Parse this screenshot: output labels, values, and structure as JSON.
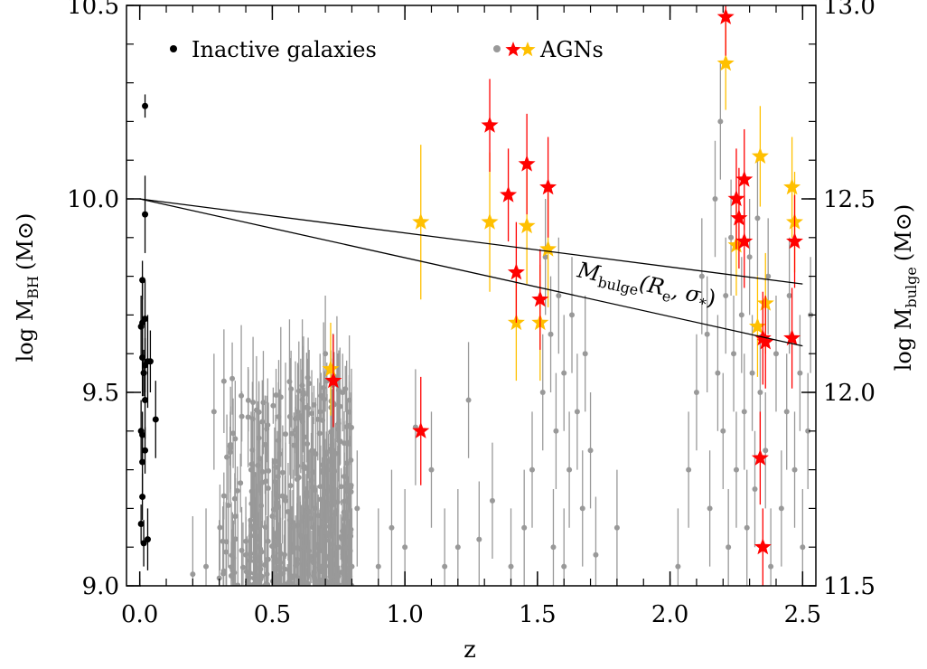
{
  "chart_data": {
    "type": "scatter",
    "xlabel": "z",
    "ylabel_left": "log M",
    "ylabel_left_sub": "BH",
    "ylabel_left_unit": "(M⊙)",
    "ylabel_right": "log M",
    "ylabel_right_sub": "bulge",
    "ylabel_right_unit": "(M⊙)",
    "xlim": [
      -0.05,
      2.55
    ],
    "ylim": [
      9.0,
      10.5
    ],
    "ylim_right": [
      11.5,
      13.0
    ],
    "x_ticks": [
      0.0,
      0.5,
      1.0,
      1.5,
      2.0,
      2.5
    ],
    "x_tick_labels": [
      "0.0",
      "0.5",
      "1.0",
      "1.5",
      "2.0",
      "2.5"
    ],
    "y_ticks": [
      9.0,
      9.5,
      10.0,
      10.5
    ],
    "y_tick_labels": [
      "9.0",
      "9.5",
      "10.0",
      "10.5"
    ],
    "y_right_ticks": [
      11.5,
      12.0,
      12.5,
      13.0
    ],
    "y_right_tick_labels": [
      "11.5",
      "12.0",
      "12.5",
      "13.0"
    ],
    "legend": {
      "placement": "top",
      "inactive_label": "Inactive galaxies",
      "agn_label": "AGNs"
    },
    "annotation": {
      "main": "M",
      "sub": "bulge",
      "args_open": "(R",
      "args_sub1": "e",
      "args_mid": ", σ",
      "args_sub2": "*",
      "args_close": ")"
    },
    "colors": {
      "inactive": "#000000",
      "agn_gray": "#999999",
      "agn_red": "#ff0000",
      "agn_yellow": "#ffc000",
      "line": "#000000"
    },
    "series": [
      {
        "name": "Inactive galaxies",
        "marker": "dot",
        "color": "#000000",
        "points": [
          {
            "x": 0.02,
            "y": 10.24,
            "err": 0.03
          },
          {
            "x": 0.02,
            "y": 9.96,
            "err": 0.1
          },
          {
            "x": 0.01,
            "y": 9.79,
            "err": 0.05
          },
          {
            "x": 0.01,
            "y": 9.68,
            "err": 0.12
          },
          {
            "x": 0.02,
            "y": 9.69,
            "err": 0.1
          },
          {
            "x": 0.005,
            "y": 9.67,
            "err": 0.08
          },
          {
            "x": 0.01,
            "y": 9.59,
            "err": 0.1
          },
          {
            "x": 0.02,
            "y": 9.57,
            "err": 0.07
          },
          {
            "x": 0.03,
            "y": 9.58,
            "err": 0.12
          },
          {
            "x": 0.04,
            "y": 9.58,
            "err": 0.08
          },
          {
            "x": 0.015,
            "y": 9.55,
            "err": 0.06
          },
          {
            "x": 0.02,
            "y": 9.48,
            "err": 0.1
          },
          {
            "x": 0.06,
            "y": 9.43,
            "err": 0.1
          },
          {
            "x": 0.005,
            "y": 9.4,
            "err": 0.08
          },
          {
            "x": 0.01,
            "y": 9.39,
            "err": 0.06
          },
          {
            "x": 0.02,
            "y": 9.35,
            "err": 0.06
          },
          {
            "x": 0.01,
            "y": 9.32,
            "err": 0.08
          },
          {
            "x": 0.01,
            "y": 9.23,
            "err": 0.06
          },
          {
            "x": 0.005,
            "y": 9.16,
            "err": 0.05
          },
          {
            "x": 0.03,
            "y": 9.12,
            "err": 0.08
          },
          {
            "x": 0.015,
            "y": 9.11,
            "err": 0.06
          }
        ]
      },
      {
        "name": "AGNs",
        "marker": "star",
        "color": "#ff0000",
        "points": [
          {
            "x": 0.73,
            "y": 9.53,
            "err": 0.12
          },
          {
            "x": 1.06,
            "y": 9.4,
            "err": 0.14
          },
          {
            "x": 1.32,
            "y": 10.19,
            "err": 0.12
          },
          {
            "x": 1.39,
            "y": 10.01,
            "err": 0.12
          },
          {
            "x": 1.42,
            "y": 9.81,
            "err": 0.13
          },
          {
            "x": 1.46,
            "y": 10.09,
            "err": 0.13
          },
          {
            "x": 1.51,
            "y": 9.74,
            "err": 0.13
          },
          {
            "x": 1.54,
            "y": 10.03,
            "err": 0.13
          },
          {
            "x": 2.21,
            "y": 10.47,
            "err": 0.1
          },
          {
            "x": 2.25,
            "y": 10.0,
            "err": 0.13
          },
          {
            "x": 2.26,
            "y": 9.95,
            "err": 0.13
          },
          {
            "x": 2.28,
            "y": 10.05,
            "err": 0.13
          },
          {
            "x": 2.28,
            "y": 9.89,
            "err": 0.12
          },
          {
            "x": 2.34,
            "y": 9.33,
            "err": 0.12
          },
          {
            "x": 2.35,
            "y": 9.64,
            "err": 0.12
          },
          {
            "x": 2.36,
            "y": 9.63,
            "err": 0.12
          },
          {
            "x": 2.35,
            "y": 9.1,
            "err": 0.1
          },
          {
            "x": 2.46,
            "y": 9.64,
            "err": 0.13
          },
          {
            "x": 2.47,
            "y": 9.89,
            "err": 0.12
          }
        ]
      },
      {
        "name": "AGNs",
        "marker": "star",
        "color": "#ffc000",
        "points": [
          {
            "x": 0.72,
            "y": 9.56,
            "err": 0.12
          },
          {
            "x": 1.06,
            "y": 9.94,
            "err": 0.2
          },
          {
            "x": 1.32,
            "y": 9.94,
            "err": 0.18
          },
          {
            "x": 1.42,
            "y": 9.68,
            "err": 0.15
          },
          {
            "x": 1.46,
            "y": 9.93,
            "err": 0.15
          },
          {
            "x": 1.51,
            "y": 9.68,
            "err": 0.15
          },
          {
            "x": 1.54,
            "y": 9.87,
            "err": 0.15
          },
          {
            "x": 2.21,
            "y": 10.35,
            "err": 0.12
          },
          {
            "x": 2.25,
            "y": 9.88,
            "err": 0.13
          },
          {
            "x": 2.34,
            "y": 10.11,
            "err": 0.13
          },
          {
            "x": 2.33,
            "y": 9.67,
            "err": 0.13
          },
          {
            "x": 2.36,
            "y": 9.73,
            "err": 0.13
          },
          {
            "x": 2.46,
            "y": 10.03,
            "err": 0.13
          },
          {
            "x": 2.47,
            "y": 9.94,
            "err": 0.13
          }
        ]
      },
      {
        "name": "AGNs",
        "marker": "dot",
        "color": "#999999",
        "points": [
          {
            "x": 0.7,
            "y": 9.6,
            "err": 0.15
          },
          {
            "x": 0.68,
            "y": 9.45,
            "err": 0.15
          },
          {
            "x": 0.75,
            "y": 9.42,
            "err": 0.15
          },
          {
            "x": 0.65,
            "y": 9.35,
            "err": 0.15
          },
          {
            "x": 0.72,
            "y": 9.3,
            "err": 0.15
          },
          {
            "x": 0.6,
            "y": 9.28,
            "err": 0.15
          },
          {
            "x": 0.78,
            "y": 9.25,
            "err": 0.15
          },
          {
            "x": 0.55,
            "y": 9.22,
            "err": 0.15
          },
          {
            "x": 0.66,
            "y": 9.2,
            "err": 0.15
          },
          {
            "x": 0.5,
            "y": 9.18,
            "err": 0.15
          },
          {
            "x": 0.58,
            "y": 9.15,
            "err": 0.15
          },
          {
            "x": 0.7,
            "y": 9.14,
            "err": 0.15
          },
          {
            "x": 0.45,
            "y": 9.12,
            "err": 0.15
          },
          {
            "x": 0.62,
            "y": 9.1,
            "err": 0.15
          },
          {
            "x": 0.75,
            "y": 9.1,
            "err": 0.15
          },
          {
            "x": 0.4,
            "y": 9.08,
            "err": 0.15
          },
          {
            "x": 0.53,
            "y": 9.06,
            "err": 0.15
          },
          {
            "x": 0.68,
            "y": 9.05,
            "err": 0.15
          },
          {
            "x": 0.35,
            "y": 9.04,
            "err": 0.15
          },
          {
            "x": 0.48,
            "y": 9.03,
            "err": 0.15
          },
          {
            "x": 0.6,
            "y": 9.02,
            "err": 0.15
          },
          {
            "x": 0.3,
            "y": 9.02,
            "err": 0.15
          },
          {
            "x": 0.25,
            "y": 9.05,
            "err": 0.15
          },
          {
            "x": 0.2,
            "y": 9.03,
            "err": 0.15
          },
          {
            "x": 0.28,
            "y": 9.45,
            "err": 0.15
          },
          {
            "x": 0.36,
            "y": 9.38,
            "err": 0.15
          },
          {
            "x": 0.42,
            "y": 9.3,
            "err": 0.15
          },
          {
            "x": 0.8,
            "y": 9.05,
            "err": 0.15
          },
          {
            "x": 0.82,
            "y": 9.2,
            "err": 0.15
          },
          {
            "x": 0.9,
            "y": 9.05,
            "err": 0.15
          },
          {
            "x": 0.95,
            "y": 9.15,
            "err": 0.15
          },
          {
            "x": 1.0,
            "y": 9.1,
            "err": 0.15
          },
          {
            "x": 1.04,
            "y": 9.41,
            "err": 0.15
          },
          {
            "x": 1.1,
            "y": 9.3,
            "err": 0.15
          },
          {
            "x": 1.15,
            "y": 9.05,
            "err": 0.15
          },
          {
            "x": 1.2,
            "y": 9.1,
            "err": 0.15
          },
          {
            "x": 1.24,
            "y": 9.48,
            "err": 0.15
          },
          {
            "x": 1.28,
            "y": 9.12,
            "err": 0.15
          },
          {
            "x": 1.33,
            "y": 9.22,
            "err": 0.15
          },
          {
            "x": 1.4,
            "y": 9.05,
            "err": 0.15
          },
          {
            "x": 1.45,
            "y": 9.15,
            "err": 0.15
          },
          {
            "x": 1.48,
            "y": 9.3,
            "err": 0.15
          },
          {
            "x": 1.52,
            "y": 9.5,
            "err": 0.15
          },
          {
            "x": 1.55,
            "y": 9.65,
            "err": 0.15
          },
          {
            "x": 1.57,
            "y": 9.4,
            "err": 0.15
          },
          {
            "x": 1.58,
            "y": 9.75,
            "err": 0.15
          },
          {
            "x": 1.6,
            "y": 9.55,
            "err": 0.15
          },
          {
            "x": 1.62,
            "y": 9.3,
            "err": 0.15
          },
          {
            "x": 1.63,
            "y": 9.7,
            "err": 0.15
          },
          {
            "x": 1.65,
            "y": 9.45,
            "err": 0.15
          },
          {
            "x": 1.67,
            "y": 9.2,
            "err": 0.15
          },
          {
            "x": 1.68,
            "y": 9.6,
            "err": 0.15
          },
          {
            "x": 1.56,
            "y": 9.1,
            "err": 0.15
          },
          {
            "x": 1.6,
            "y": 9.05,
            "err": 0.15
          },
          {
            "x": 1.53,
            "y": 9.85,
            "err": 0.15
          },
          {
            "x": 1.7,
            "y": 9.35,
            "err": 0.15
          },
          {
            "x": 1.72,
            "y": 9.08,
            "err": 0.15
          },
          {
            "x": 1.8,
            "y": 9.15,
            "err": 0.15
          },
          {
            "x": 2.03,
            "y": 9.05,
            "err": 0.15
          },
          {
            "x": 2.07,
            "y": 9.3,
            "err": 0.15
          },
          {
            "x": 2.1,
            "y": 9.5,
            "err": 0.15
          },
          {
            "x": 2.12,
            "y": 9.8,
            "err": 0.15
          },
          {
            "x": 2.14,
            "y": 9.65,
            "err": 0.15
          },
          {
            "x": 2.15,
            "y": 9.2,
            "err": 0.15
          },
          {
            "x": 2.17,
            "y": 10.0,
            "err": 0.15
          },
          {
            "x": 2.18,
            "y": 9.55,
            "err": 0.15
          },
          {
            "x": 2.19,
            "y": 10.2,
            "err": 0.15
          },
          {
            "x": 2.2,
            "y": 9.4,
            "err": 0.15
          },
          {
            "x": 2.21,
            "y": 9.75,
            "err": 0.15
          },
          {
            "x": 2.22,
            "y": 9.1,
            "err": 0.15
          },
          {
            "x": 2.23,
            "y": 9.9,
            "err": 0.15
          },
          {
            "x": 2.24,
            "y": 9.6,
            "err": 0.15
          },
          {
            "x": 2.25,
            "y": 9.3,
            "err": 0.15
          },
          {
            "x": 2.27,
            "y": 9.7,
            "err": 0.15
          },
          {
            "x": 2.28,
            "y": 9.45,
            "err": 0.15
          },
          {
            "x": 2.29,
            "y": 9.15,
            "err": 0.15
          },
          {
            "x": 2.3,
            "y": 9.85,
            "err": 0.15
          },
          {
            "x": 2.31,
            "y": 9.55,
            "err": 0.15
          },
          {
            "x": 2.32,
            "y": 9.25,
            "err": 0.15
          },
          {
            "x": 2.33,
            "y": 9.95,
            "err": 0.15
          },
          {
            "x": 2.34,
            "y": 9.5,
            "err": 0.15
          },
          {
            "x": 2.36,
            "y": 9.35,
            "err": 0.15
          },
          {
            "x": 2.37,
            "y": 9.8,
            "err": 0.15
          },
          {
            "x": 2.38,
            "y": 9.05,
            "err": 0.15
          },
          {
            "x": 2.4,
            "y": 9.6,
            "err": 0.15
          },
          {
            "x": 2.42,
            "y": 9.2,
            "err": 0.15
          },
          {
            "x": 2.44,
            "y": 9.45,
            "err": 0.15
          },
          {
            "x": 2.45,
            "y": 9.75,
            "err": 0.15
          },
          {
            "x": 2.47,
            "y": 9.3,
            "err": 0.15
          },
          {
            "x": 2.49,
            "y": 9.55,
            "err": 0.15
          },
          {
            "x": 2.5,
            "y": 9.1,
            "err": 0.15
          },
          {
            "x": 2.52,
            "y": 9.4,
            "err": 0.15
          },
          {
            "x": 2.53,
            "y": 9.7,
            "err": 0.15
          }
        ]
      }
    ],
    "lines": [
      {
        "x": [
          0.0,
          2.5
        ],
        "y": [
          10.0,
          9.78
        ]
      },
      {
        "x": [
          0.0,
          2.5
        ],
        "y": [
          10.0,
          9.62
        ]
      }
    ]
  }
}
